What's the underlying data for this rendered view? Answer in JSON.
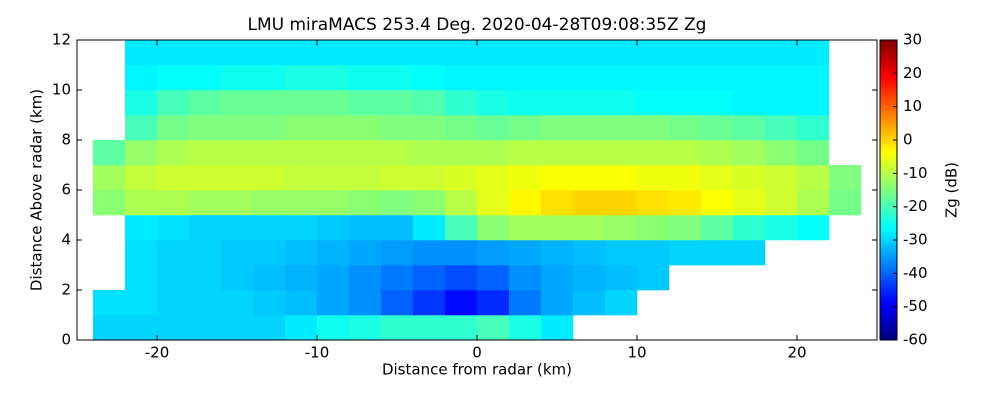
{
  "chart_data": {
    "type": "heatmap",
    "title": "LMU miraMACS 253.4 Deg. 2020-04-28T09:08:35Z  Zg",
    "x_label": "Distance from radar (km)",
    "y_label": "Distance Above radar  (km)",
    "colorbar_label": "Zg (dB)",
    "colormap": "jet",
    "xlim": [
      -25,
      25
    ],
    "ylim": [
      0,
      12
    ],
    "xticks": [
      -20,
      -10,
      0,
      10,
      20
    ],
    "yticks": [
      0,
      2,
      4,
      6,
      8,
      10,
      12
    ],
    "zlim": [
      -60,
      30
    ],
    "zticks": [
      -60,
      -50,
      -40,
      -30,
      -20,
      -10,
      0,
      10,
      20,
      30
    ],
    "xbins": [
      -24,
      -22,
      -20,
      -18,
      -16,
      -14,
      -12,
      -10,
      -8,
      -6,
      -4,
      -2,
      0,
      2,
      4,
      6,
      8,
      10,
      12,
      14,
      16,
      18,
      20,
      22,
      24
    ],
    "ybins": [
      0,
      1,
      2,
      3,
      4,
      5,
      6,
      7,
      8,
      9,
      10,
      11,
      12
    ],
    "z": [
      [
        -30,
        -30,
        -30,
        -30,
        -30,
        -30,
        -28,
        -25,
        -24,
        -22,
        -22,
        -22,
        -20,
        -24,
        -28,
        null,
        null,
        null,
        null,
        null,
        null,
        null,
        null,
        null
      ],
      [
        -29,
        -29,
        -30,
        -30,
        -30,
        -31,
        -32,
        -34,
        -36,
        -40,
        -44,
        -48,
        -45,
        -38,
        -34,
        -32,
        -30,
        null,
        null,
        null,
        null,
        null,
        null,
        null
      ],
      [
        null,
        -29,
        -30,
        -30,
        -31,
        -32,
        -33,
        -34,
        -36,
        -38,
        -40,
        -42,
        -40,
        -36,
        -34,
        -33,
        -32,
        -31,
        null,
        null,
        null,
        null,
        null,
        null
      ],
      [
        null,
        -29,
        -30,
        -30,
        -31,
        -31,
        -32,
        -33,
        -34,
        -35,
        -36,
        -36,
        -35,
        -34,
        -33,
        -32,
        -31,
        -31,
        -30,
        -30,
        -30,
        null,
        null,
        null
      ],
      [
        null,
        -28,
        -29,
        -30,
        -30,
        -30,
        -30,
        -31,
        -32,
        -32,
        -28,
        -20,
        -14,
        -12,
        -12,
        -12,
        -13,
        -14,
        -15,
        -18,
        -22,
        -24,
        -26,
        null
      ],
      [
        -14,
        -11,
        -11,
        -12,
        -12,
        -13,
        -13,
        -13,
        -14,
        -15,
        -14,
        -10,
        -6,
        -3,
        -1,
        0,
        0,
        -1,
        -2,
        -4,
        -6,
        -8,
        -11,
        -16
      ],
      [
        -12,
        -9,
        -8,
        -8,
        -8,
        -8,
        -9,
        -9,
        -9,
        -8,
        -8,
        -7,
        -6,
        -5,
        -4,
        -4,
        -4,
        -5,
        -5,
        -6,
        -7,
        -8,
        -10,
        -15
      ],
      [
        -18,
        -13,
        -11,
        -10,
        -10,
        -10,
        -10,
        -10,
        -10,
        -10,
        -11,
        -11,
        -11,
        -10,
        -10,
        -10,
        -10,
        -10,
        -10,
        -11,
        -12,
        -14,
        -16,
        null
      ],
      [
        null,
        -20,
        -16,
        -15,
        -15,
        -15,
        -14,
        -14,
        -14,
        -15,
        -15,
        -16,
        -17,
        -16,
        -15,
        -15,
        -15,
        -15,
        -16,
        -17,
        -18,
        -20,
        -22,
        null
      ],
      [
        null,
        -24,
        -20,
        -18,
        -17,
        -17,
        -17,
        -17,
        -18,
        -18,
        -19,
        -22,
        -24,
        -25,
        -25,
        -25,
        -25,
        -26,
        -26,
        -26,
        -27,
        -27,
        -27,
        null
      ],
      [
        null,
        -27,
        -26,
        -26,
        -25,
        -25,
        -24,
        -24,
        -25,
        -25,
        -26,
        -27,
        -27,
        -27,
        -27,
        -27,
        -27,
        -27,
        -27,
        -27,
        -27,
        -27,
        -27,
        null
      ],
      [
        null,
        -28,
        -28,
        -28,
        -28,
        -28,
        -28,
        -28,
        -28,
        -28,
        -28,
        -28,
        -28,
        -28,
        -28,
        -28,
        -28,
        -28,
        -28,
        -28,
        -28,
        -28,
        -28,
        null
      ]
    ]
  }
}
